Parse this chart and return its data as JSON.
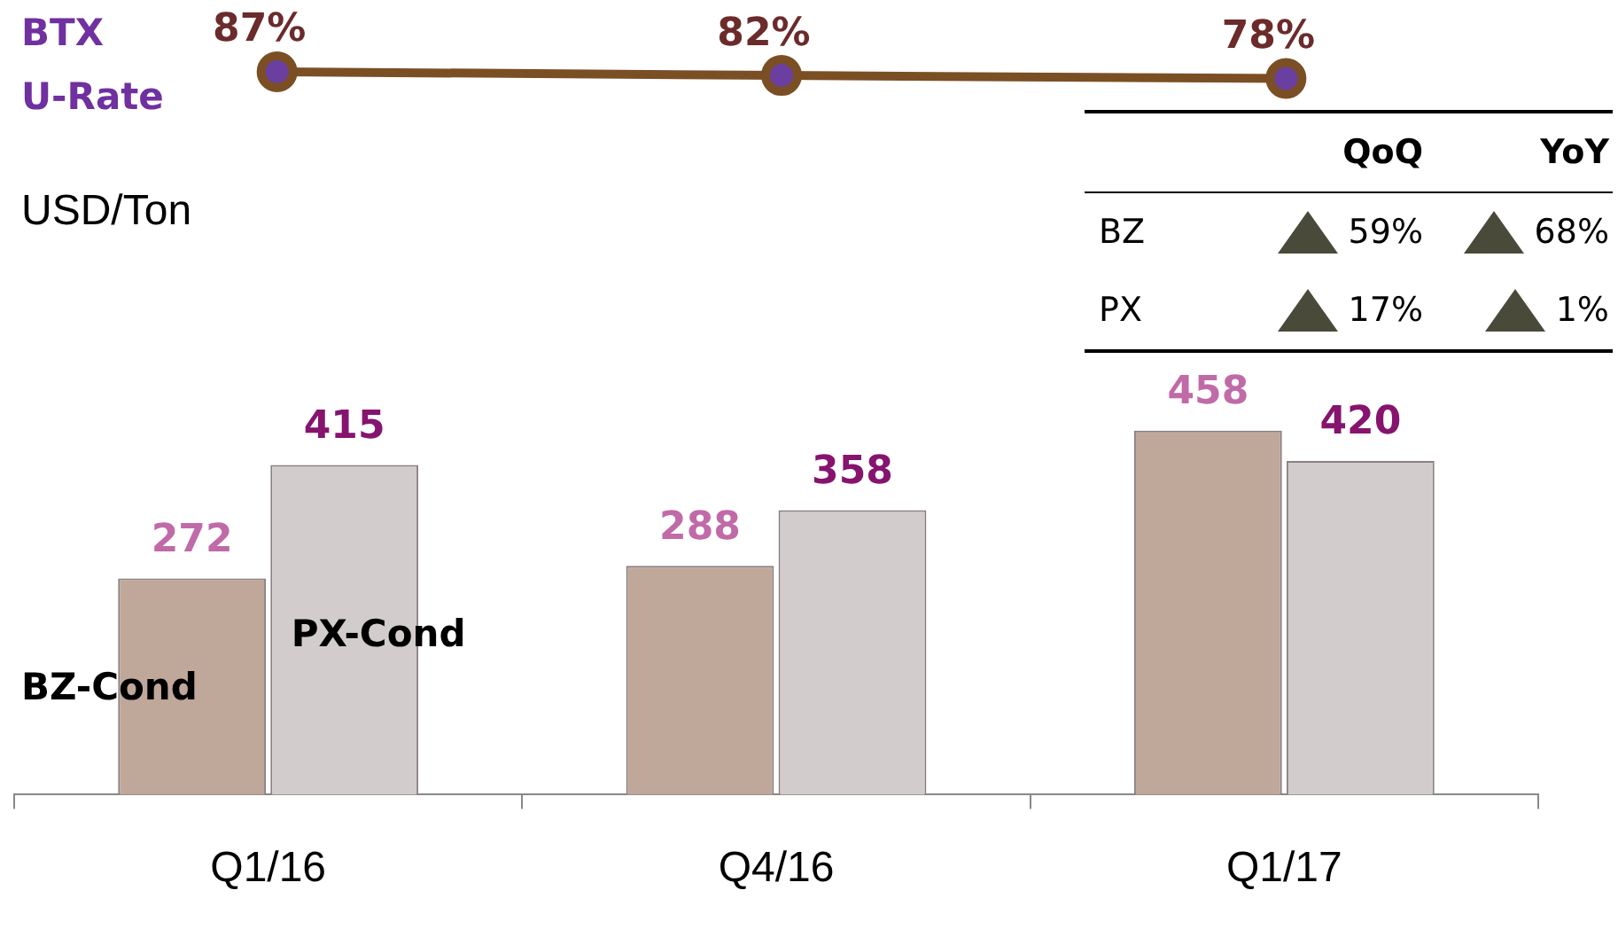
{
  "chart_data": [
    {
      "type": "line",
      "categories": [
        null,
        null,
        null
      ],
      "series": [
        {
          "name": "BTX U-Rate",
          "color": "#7b4f24",
          "values": [
            87,
            82,
            78
          ],
          "value_labels": [
            "87%",
            "82%",
            "78%"
          ]
        }
      ],
      "marker": "circle",
      "legend": false,
      "grid": false,
      "tick_labels": false
    },
    {
      "type": "bar",
      "ylabel": "USD/Ton",
      "categories": [
        "Q1/16",
        "Q4/16",
        "Q1/17"
      ],
      "series": [
        {
          "name": "BZ-Cond",
          "color": "#bfa79a",
          "values": [
            272,
            288,
            458
          ]
        },
        {
          "name": "PX-Cond",
          "color": "#d2cccc",
          "values": [
            415,
            358,
            420
          ]
        }
      ],
      "data_labels": true,
      "legend": false,
      "grid": false,
      "tick_labels": "x",
      "annotations": [
        "QoQ",
        "YoY",
        "BZ",
        "59%",
        "68%",
        "PX",
        "17%",
        "1%"
      ]
    }
  ]
}
